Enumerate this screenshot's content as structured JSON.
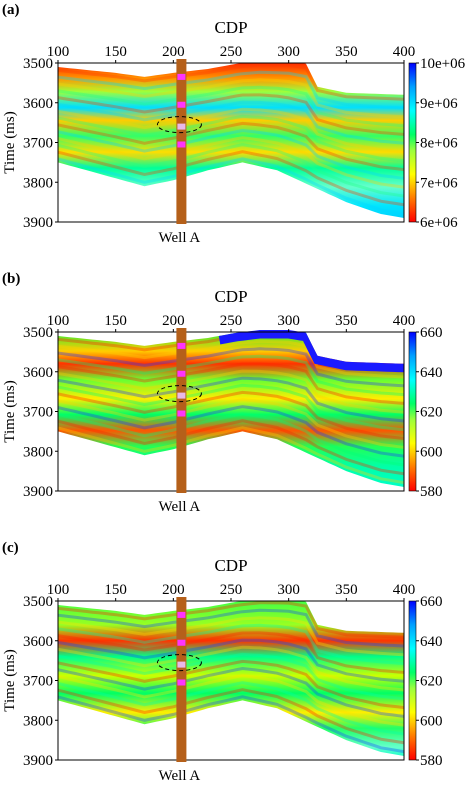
{
  "chart_data": [
    {
      "type": "heatmap",
      "panel_label": "(a)",
      "xlabel": "CDP",
      "ylabel": "Time (ms)",
      "x_ticks": [
        "100",
        "150",
        "200",
        "250",
        "300",
        "350",
        "400"
      ],
      "y_ticks": [
        "3500",
        "3600",
        "3700",
        "3800",
        "3900"
      ],
      "xlim": [
        100,
        400
      ],
      "ylim": [
        3900,
        3500
      ],
      "well_label": "Well A",
      "well_cdp": 207,
      "colorbar": {
        "ticks": [
          "10e+06",
          "9e+06",
          "8e+06",
          "7e+06",
          "6e+06"
        ],
        "range": [
          6000000,
          10000000
        ]
      },
      "top_horizon": [
        [
          100,
          3510
        ],
        [
          150,
          3525
        ],
        [
          175,
          3535
        ],
        [
          200,
          3525
        ],
        [
          230,
          3515
        ],
        [
          255,
          3502
        ],
        [
          275,
          3495
        ],
        [
          300,
          3495
        ],
        [
          315,
          3502
        ],
        [
          325,
          3560
        ],
        [
          350,
          3575
        ],
        [
          400,
          3580
        ]
      ],
      "bottom_horizon": [
        [
          100,
          3750
        ],
        [
          150,
          3790
        ],
        [
          175,
          3810
        ],
        [
          200,
          3795
        ],
        [
          230,
          3770
        ],
        [
          260,
          3750
        ],
        [
          290,
          3770
        ],
        [
          320,
          3810
        ],
        [
          350,
          3850
        ],
        [
          380,
          3880
        ],
        [
          400,
          3890
        ]
      ],
      "well_markers_ms": [
        3535,
        3605,
        3705
      ]
    },
    {
      "type": "heatmap",
      "panel_label": "(b)",
      "xlabel": "CDP",
      "ylabel": "Time (ms)",
      "x_ticks": [
        "100",
        "150",
        "200",
        "250",
        "300",
        "350",
        "400"
      ],
      "y_ticks": [
        "3500",
        "3600",
        "3700",
        "3800",
        "3900"
      ],
      "xlim": [
        100,
        400
      ],
      "ylim": [
        3900,
        3500
      ],
      "well_label": "Well A",
      "well_cdp": 207,
      "colorbar": {
        "ticks": [
          "660",
          "640",
          "620",
          "600",
          "580"
        ],
        "range": [
          580,
          660
        ]
      },
      "top_horizon": [
        [
          100,
          3510
        ],
        [
          150,
          3525
        ],
        [
          175,
          3535
        ],
        [
          200,
          3525
        ],
        [
          230,
          3515
        ],
        [
          255,
          3502
        ],
        [
          275,
          3495
        ],
        [
          300,
          3495
        ],
        [
          315,
          3502
        ],
        [
          325,
          3560
        ],
        [
          350,
          3575
        ],
        [
          400,
          3580
        ]
      ],
      "bottom_horizon": [
        [
          100,
          3750
        ],
        [
          150,
          3790
        ],
        [
          175,
          3810
        ],
        [
          200,
          3795
        ],
        [
          230,
          3770
        ],
        [
          260,
          3750
        ],
        [
          290,
          3770
        ],
        [
          320,
          3810
        ],
        [
          350,
          3850
        ],
        [
          380,
          3880
        ],
        [
          400,
          3890
        ]
      ],
      "well_markers_ms": [
        3535,
        3605,
        3705
      ]
    },
    {
      "type": "heatmap",
      "panel_label": "(c)",
      "xlabel": "CDP",
      "ylabel": "Time (ms)",
      "x_ticks": [
        "100",
        "150",
        "200",
        "250",
        "300",
        "350",
        "400"
      ],
      "y_ticks": [
        "3500",
        "3600",
        "3700",
        "3800",
        "3900"
      ],
      "xlim": [
        100,
        400
      ],
      "ylim": [
        3900,
        3500
      ],
      "well_label": "Well A",
      "well_cdp": 207,
      "colorbar": {
        "ticks": [
          "660",
          "640",
          "620",
          "600",
          "580"
        ],
        "range": [
          580,
          660
        ]
      },
      "top_horizon": [
        [
          100,
          3510
        ],
        [
          150,
          3525
        ],
        [
          175,
          3535
        ],
        [
          200,
          3525
        ],
        [
          230,
          3515
        ],
        [
          255,
          3502
        ],
        [
          275,
          3495
        ],
        [
          300,
          3495
        ],
        [
          315,
          3502
        ],
        [
          325,
          3560
        ],
        [
          350,
          3575
        ],
        [
          400,
          3580
        ]
      ],
      "bottom_horizon": [
        [
          100,
          3750
        ],
        [
          150,
          3790
        ],
        [
          175,
          3810
        ],
        [
          200,
          3795
        ],
        [
          230,
          3770
        ],
        [
          260,
          3750
        ],
        [
          290,
          3770
        ],
        [
          320,
          3810
        ],
        [
          350,
          3850
        ],
        [
          380,
          3880
        ],
        [
          400,
          3890
        ]
      ],
      "well_markers_ms": [
        3535,
        3605,
        3705
      ]
    }
  ]
}
